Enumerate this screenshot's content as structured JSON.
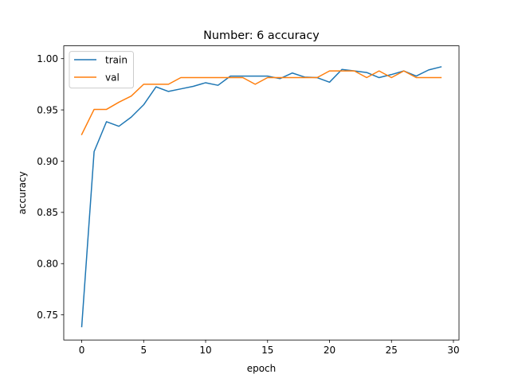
{
  "chart_data": {
    "type": "line",
    "title": "Number: 6 accuracy",
    "xlabel": "epoch",
    "ylabel": "accuracy",
    "xlim": [
      -1.45,
      30.45
    ],
    "ylim": [
      0.7255,
      1.0125
    ],
    "xticks": [
      0,
      5,
      10,
      15,
      20,
      25,
      30
    ],
    "yticks": [
      0.75,
      0.8,
      0.85,
      0.9,
      0.95,
      1.0
    ],
    "ytick_labels": [
      "0.75",
      "0.80",
      "0.85",
      "0.90",
      "0.95",
      "1.00"
    ],
    "legend_position": "upper-left",
    "grid": false,
    "x": [
      0,
      1,
      2,
      3,
      4,
      5,
      6,
      7,
      8,
      9,
      10,
      11,
      12,
      13,
      14,
      15,
      16,
      17,
      18,
      19,
      20,
      21,
      22,
      23,
      24,
      25,
      26,
      27,
      28,
      29
    ],
    "series": [
      {
        "name": "train",
        "color": "#1f77b4",
        "values": [
          0.7385,
          0.9093,
          0.9385,
          0.934,
          0.943,
          0.955,
          0.9725,
          0.968,
          0.9705,
          0.973,
          0.9765,
          0.974,
          0.983,
          0.983,
          0.983,
          0.983,
          0.9805,
          0.986,
          0.982,
          0.9815,
          0.977,
          0.9895,
          0.988,
          0.9865,
          0.9815,
          0.9845,
          0.988,
          0.983,
          0.989,
          0.992
        ]
      },
      {
        "name": "val",
        "color": "#ff7f0e",
        "values": [
          0.926,
          0.9505,
          0.9505,
          0.9575,
          0.9635,
          0.975,
          0.975,
          0.975,
          0.9815,
          0.9815,
          0.9815,
          0.9815,
          0.9815,
          0.9815,
          0.975,
          0.9815,
          0.9815,
          0.9815,
          0.9815,
          0.9815,
          0.988,
          0.988,
          0.988,
          0.9815,
          0.988,
          0.9815,
          0.988,
          0.9815,
          0.9815,
          0.9815
        ]
      }
    ]
  }
}
